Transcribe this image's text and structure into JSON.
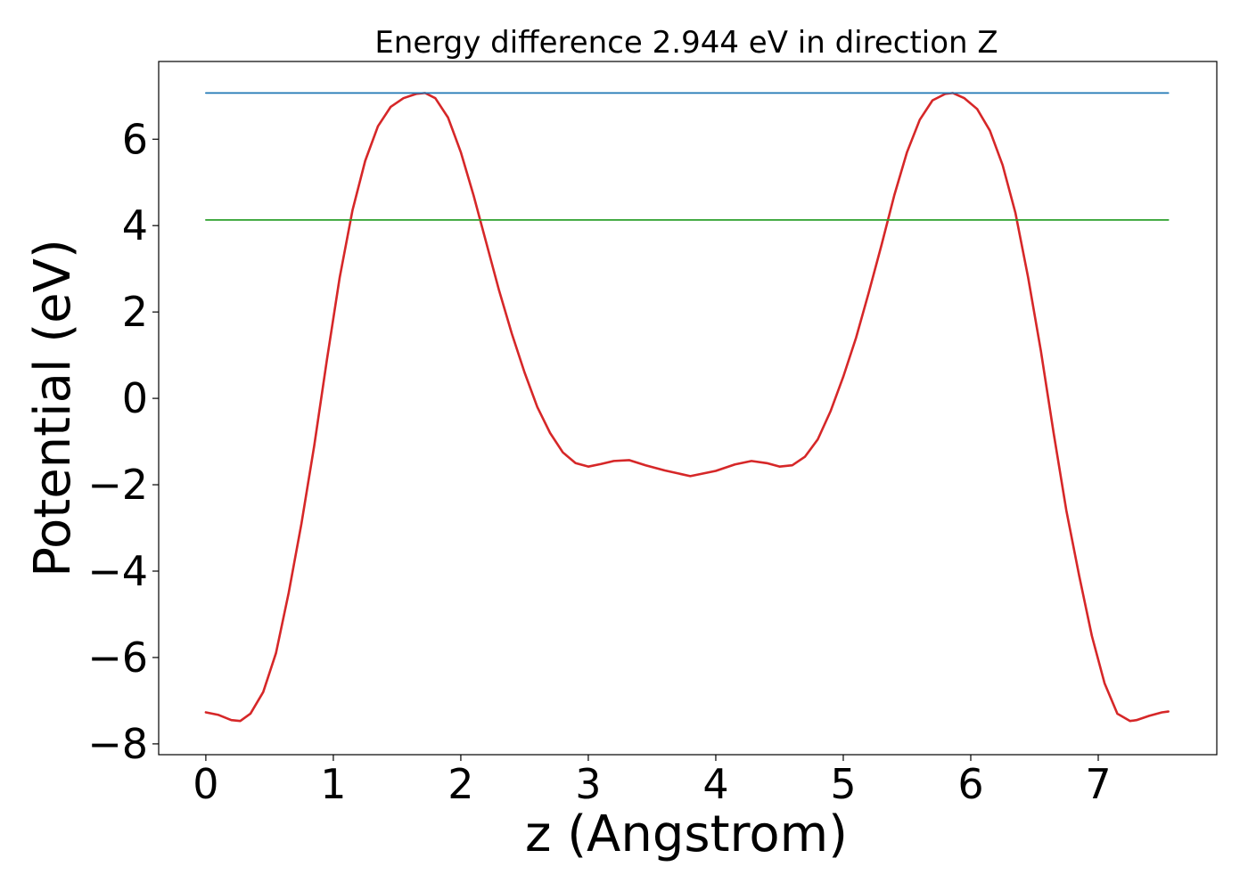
{
  "chart_data": {
    "type": "line",
    "title": "Energy difference 2.944 eV in direction Z",
    "xlabel": "z (Angstrom)",
    "ylabel": "Potential (eV)",
    "xlim": [
      -0.37,
      7.93
    ],
    "ylim": [
      -8.25,
      7.8
    ],
    "x_ticks": [
      0,
      1,
      2,
      3,
      4,
      5,
      6,
      7
    ],
    "x_tick_labels": [
      "0",
      "1",
      "2",
      "3",
      "4",
      "5",
      "6",
      "7"
    ],
    "y_ticks": [
      -8,
      -6,
      -4,
      -2,
      0,
      2,
      4,
      6
    ],
    "y_tick_labels": [
      "−8",
      "−6",
      "−4",
      "−2",
      "0",
      "2",
      "4",
      "6"
    ],
    "grid": false,
    "series": [
      {
        "color": "#d62728",
        "x": [
          0.0,
          0.1,
          0.2,
          0.27,
          0.35,
          0.45,
          0.55,
          0.65,
          0.75,
          0.85,
          0.95,
          1.05,
          1.15,
          1.25,
          1.35,
          1.45,
          1.55,
          1.65,
          1.72,
          1.8,
          1.9,
          2.0,
          2.1,
          2.2,
          2.3,
          2.4,
          2.5,
          2.6,
          2.7,
          2.8,
          2.9,
          3.0,
          3.1,
          3.2,
          3.32,
          3.45,
          3.6,
          3.8,
          4.0,
          4.15,
          4.28,
          4.4,
          4.5,
          4.6,
          4.7,
          4.8,
          4.9,
          5.0,
          5.1,
          5.2,
          5.3,
          5.4,
          5.5,
          5.6,
          5.7,
          5.8,
          5.86,
          5.95,
          6.05,
          6.15,
          6.25,
          6.35,
          6.45,
          6.55,
          6.65,
          6.75,
          6.85,
          6.95,
          7.05,
          7.15,
          7.25,
          7.3,
          7.4,
          7.5,
          7.55
        ],
        "y": [
          -7.27,
          -7.33,
          -7.45,
          -7.47,
          -7.3,
          -6.8,
          -5.9,
          -4.5,
          -2.9,
          -1.1,
          0.9,
          2.8,
          4.35,
          5.5,
          6.3,
          6.75,
          6.95,
          7.05,
          7.07,
          6.95,
          6.5,
          5.7,
          4.7,
          3.6,
          2.5,
          1.5,
          0.6,
          -0.2,
          -0.8,
          -1.25,
          -1.5,
          -1.58,
          -1.52,
          -1.45,
          -1.43,
          -1.55,
          -1.67,
          -1.8,
          -1.68,
          -1.53,
          -1.45,
          -1.5,
          -1.58,
          -1.55,
          -1.35,
          -0.95,
          -0.3,
          0.5,
          1.4,
          2.45,
          3.55,
          4.7,
          5.7,
          6.45,
          6.9,
          7.05,
          7.07,
          6.95,
          6.7,
          6.2,
          5.4,
          4.3,
          2.8,
          1.1,
          -0.8,
          -2.6,
          -4.1,
          -5.5,
          -6.6,
          -7.3,
          -7.47,
          -7.45,
          -7.35,
          -7.27,
          -7.25
        ]
      },
      {
        "color": "#1f77b4",
        "x": [
          0.0,
          7.55
        ],
        "y": [
          7.07,
          7.07
        ]
      },
      {
        "color": "#2ca02c",
        "x": [
          0.0,
          7.55
        ],
        "y": [
          4.13,
          4.13
        ]
      }
    ]
  }
}
